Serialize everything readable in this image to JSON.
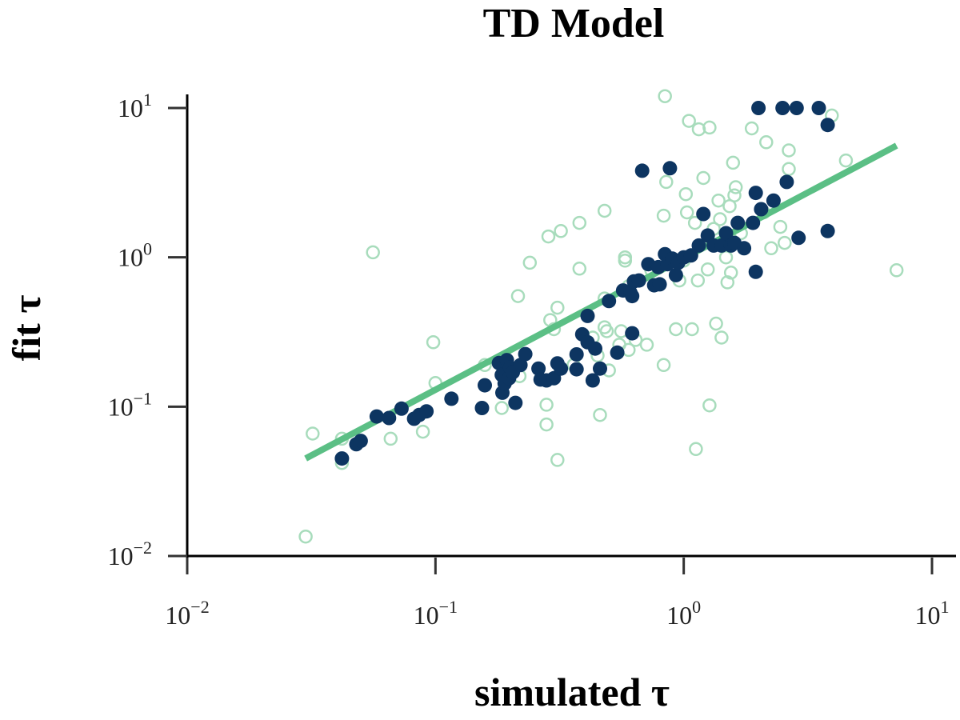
{
  "chart_data": {
    "type": "scatter",
    "title": "TD Model",
    "xlabel": "simulated τ",
    "ylabel": "fit τ",
    "xscale": "log",
    "yscale": "log",
    "xlim": [
      0.01,
      10
    ],
    "ylim": [
      0.01,
      10
    ],
    "x_ticks": [
      {
        "base": "10",
        "exp": "−2",
        "value": 0.01
      },
      {
        "base": "10",
        "exp": "−1",
        "value": 0.1
      },
      {
        "base": "10",
        "exp": "0",
        "value": 1
      },
      {
        "base": "10",
        "exp": "1",
        "value": 10
      }
    ],
    "y_ticks": [
      {
        "base": "10",
        "exp": "−2",
        "value": 0.01
      },
      {
        "base": "10",
        "exp": "−1",
        "value": 0.1
      },
      {
        "base": "10",
        "exp": "0",
        "value": 1
      },
      {
        "base": "10",
        "exp": "1",
        "value": 10
      }
    ],
    "colors": {
      "filled": "#0d3561",
      "hollow": "#a8dcbc",
      "fit_line": "#5bbf85"
    },
    "fit_line": {
      "name": "fit",
      "x": [
        0.03,
        7.2
      ],
      "y": [
        0.045,
        5.6
      ]
    },
    "series": [
      {
        "name": "filled",
        "style": "filled",
        "points": [
          [
            0.042,
            0.045
          ],
          [
            0.048,
            0.056
          ],
          [
            0.05,
            0.059
          ],
          [
            0.058,
            0.086
          ],
          [
            0.065,
            0.084
          ],
          [
            0.073,
            0.097
          ],
          [
            0.082,
            0.083
          ],
          [
            0.086,
            0.088
          ],
          [
            0.092,
            0.093
          ],
          [
            0.116,
            0.113
          ],
          [
            0.154,
            0.098
          ],
          [
            0.158,
            0.139
          ],
          [
            0.18,
            0.196
          ],
          [
            0.185,
            0.163
          ],
          [
            0.186,
            0.124
          ],
          [
            0.19,
            0.143
          ],
          [
            0.194,
            0.205
          ],
          [
            0.198,
            0.155
          ],
          [
            0.2,
            0.183
          ],
          [
            0.205,
            0.17
          ],
          [
            0.21,
            0.106
          ],
          [
            0.22,
            0.19
          ],
          [
            0.23,
            0.225
          ],
          [
            0.26,
            0.18
          ],
          [
            0.265,
            0.152
          ],
          [
            0.28,
            0.15
          ],
          [
            0.3,
            0.155
          ],
          [
            0.31,
            0.195
          ],
          [
            0.32,
            0.18
          ],
          [
            0.37,
            0.178
          ],
          [
            0.37,
            0.224
          ],
          [
            0.39,
            0.305
          ],
          [
            0.41,
            0.27
          ],
          [
            0.41,
            0.405
          ],
          [
            0.43,
            0.15
          ],
          [
            0.44,
            0.245
          ],
          [
            0.46,
            0.18
          ],
          [
            0.5,
            0.51
          ],
          [
            0.54,
            0.23
          ],
          [
            0.57,
            0.6
          ],
          [
            0.61,
            0.58
          ],
          [
            0.62,
            0.31
          ],
          [
            0.62,
            0.55
          ],
          [
            0.63,
            0.69
          ],
          [
            0.66,
            0.7
          ],
          [
            0.68,
            3.8
          ],
          [
            0.72,
            0.9
          ],
          [
            0.76,
            0.65
          ],
          [
            0.79,
            0.86
          ],
          [
            0.8,
            0.66
          ],
          [
            0.84,
            1.05
          ],
          [
            0.86,
            0.9
          ],
          [
            0.88,
            3.95
          ],
          [
            0.9,
            0.98
          ],
          [
            0.93,
            0.76
          ],
          [
            0.95,
            0.92
          ],
          [
            1.0,
            1.0
          ],
          [
            1.07,
            1.03
          ],
          [
            1.15,
            1.2
          ],
          [
            1.2,
            1.95
          ],
          [
            1.25,
            1.4
          ],
          [
            1.32,
            1.2
          ],
          [
            1.42,
            1.2
          ],
          [
            1.48,
            1.45
          ],
          [
            1.55,
            1.2
          ],
          [
            1.6,
            1.25
          ],
          [
            1.65,
            1.7
          ],
          [
            1.75,
            1.15
          ],
          [
            1.9,
            1.7
          ],
          [
            1.95,
            0.8
          ],
          [
            1.95,
            2.7
          ],
          [
            2.0,
            10
          ],
          [
            2.05,
            2.1
          ],
          [
            2.3,
            2.4
          ],
          [
            2.5,
            10
          ],
          [
            2.6,
            3.2
          ],
          [
            2.85,
            10
          ],
          [
            2.9,
            1.35
          ],
          [
            3.5,
            10
          ],
          [
            3.8,
            7.7
          ],
          [
            3.8,
            1.5
          ]
        ]
      },
      {
        "name": "hollow",
        "style": "hollow",
        "points": [
          [
            0.03,
            0.0135
          ],
          [
            0.032,
            0.066
          ],
          [
            0.042,
            0.061
          ],
          [
            0.042,
            0.042
          ],
          [
            0.056,
            1.08
          ],
          [
            0.066,
            0.061
          ],
          [
            0.089,
            0.068
          ],
          [
            0.098,
            0.27
          ],
          [
            0.1,
            0.144
          ],
          [
            0.158,
            0.19
          ],
          [
            0.185,
            0.098
          ],
          [
            0.215,
            0.55
          ],
          [
            0.218,
            0.16
          ],
          [
            0.24,
            0.92
          ],
          [
            0.28,
            0.103
          ],
          [
            0.28,
            0.076
          ],
          [
            0.285,
            1.38
          ],
          [
            0.29,
            0.38
          ],
          [
            0.3,
            0.33
          ],
          [
            0.31,
            0.46
          ],
          [
            0.31,
            0.044
          ],
          [
            0.32,
            1.5
          ],
          [
            0.36,
            0.19
          ],
          [
            0.38,
            0.84
          ],
          [
            0.38,
            1.7
          ],
          [
            0.43,
            0.29
          ],
          [
            0.45,
            0.22
          ],
          [
            0.46,
            0.088
          ],
          [
            0.48,
            2.05
          ],
          [
            0.48,
            0.53
          ],
          [
            0.48,
            0.34
          ],
          [
            0.49,
            0.32
          ],
          [
            0.5,
            0.175
          ],
          [
            0.55,
            0.26
          ],
          [
            0.56,
            0.32
          ],
          [
            0.58,
            0.95
          ],
          [
            0.58,
            1.0
          ],
          [
            0.6,
            0.64
          ],
          [
            0.6,
            0.24
          ],
          [
            0.64,
            0.28
          ],
          [
            0.71,
            0.26
          ],
          [
            0.74,
            0.82
          ],
          [
            0.83,
            0.19
          ],
          [
            0.83,
            1.9
          ],
          [
            0.84,
            12.0
          ],
          [
            0.85,
            3.2
          ],
          [
            0.93,
            0.33
          ],
          [
            0.96,
            0.7
          ],
          [
            1.0,
            0.95
          ],
          [
            1.02,
            2.65
          ],
          [
            1.03,
            2.0
          ],
          [
            1.05,
            8.2
          ],
          [
            1.08,
            0.33
          ],
          [
            1.11,
            1.7
          ],
          [
            1.12,
            0.052
          ],
          [
            1.14,
            0.7
          ],
          [
            1.15,
            7.2
          ],
          [
            1.2,
            3.4
          ],
          [
            1.25,
            0.83
          ],
          [
            1.27,
            0.102
          ],
          [
            1.27,
            7.4
          ],
          [
            1.32,
            1.55
          ],
          [
            1.35,
            0.36
          ],
          [
            1.38,
            2.4
          ],
          [
            1.4,
            1.8
          ],
          [
            1.42,
            0.29
          ],
          [
            1.48,
            1.0
          ],
          [
            1.5,
            0.68
          ],
          [
            1.53,
            2.2
          ],
          [
            1.55,
            0.79
          ],
          [
            1.58,
            4.3
          ],
          [
            1.6,
            2.6
          ],
          [
            1.62,
            2.95
          ],
          [
            1.7,
            1.45
          ],
          [
            1.75,
            1.15
          ],
          [
            1.88,
            7.3
          ],
          [
            2.1,
            2.0
          ],
          [
            2.15,
            5.9
          ],
          [
            2.25,
            1.15
          ],
          [
            2.45,
            1.6
          ],
          [
            2.55,
            1.25
          ],
          [
            2.65,
            5.2
          ],
          [
            2.65,
            3.9
          ],
          [
            3.95,
            8.9
          ],
          [
            4.5,
            4.45
          ],
          [
            7.2,
            0.82
          ]
        ]
      }
    ]
  }
}
